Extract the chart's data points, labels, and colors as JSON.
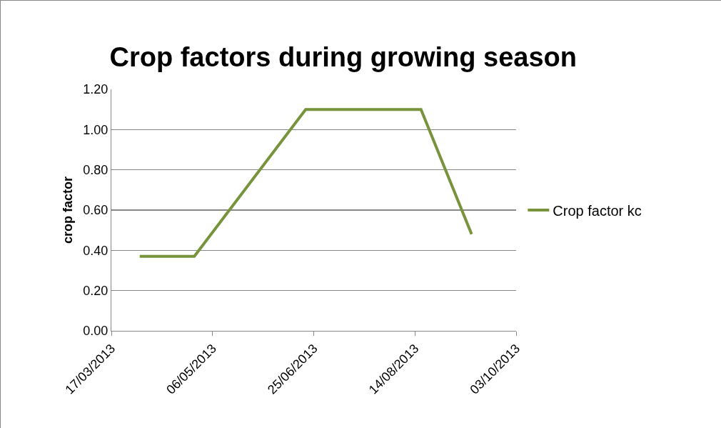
{
  "chart_data": {
    "type": "line",
    "title": "Crop factors during growing season",
    "ylabel": "crop factor",
    "x": [
      "2013-03-31",
      "2013-04-27",
      "2013-06-21",
      "2013-08-17",
      "2013-09-11"
    ],
    "series": [
      {
        "name": "Crop factor kc",
        "color": "#77933c",
        "values": [
          0.37,
          0.37,
          1.1,
          1.1,
          0.48
        ]
      }
    ],
    "xlim": [
      "2013-03-17",
      "2013-10-03"
    ],
    "xticks": [
      {
        "value": "2013-03-17",
        "label": "17/03/2013"
      },
      {
        "value": "2013-05-06",
        "label": "06/05/2013"
      },
      {
        "value": "2013-06-25",
        "label": "25/06/2013"
      },
      {
        "value": "2013-08-14",
        "label": "14/08/2013"
      },
      {
        "value": "2013-10-03",
        "label": "03/10/2013"
      }
    ],
    "ylim": [
      0,
      1.2
    ],
    "yticks": [
      {
        "value": 0,
        "label": "0.00"
      },
      {
        "value": 0.2,
        "label": "0.20"
      },
      {
        "value": 0.4,
        "label": "0.40"
      },
      {
        "value": 0.6,
        "label": "0.60"
      },
      {
        "value": 0.8,
        "label": "0.80"
      },
      {
        "value": 1,
        "label": "1.00"
      },
      {
        "value": 1.2,
        "label": "1.20"
      }
    ],
    "grid": "y",
    "legend": "right",
    "marker": "none",
    "line_style": "solid"
  }
}
